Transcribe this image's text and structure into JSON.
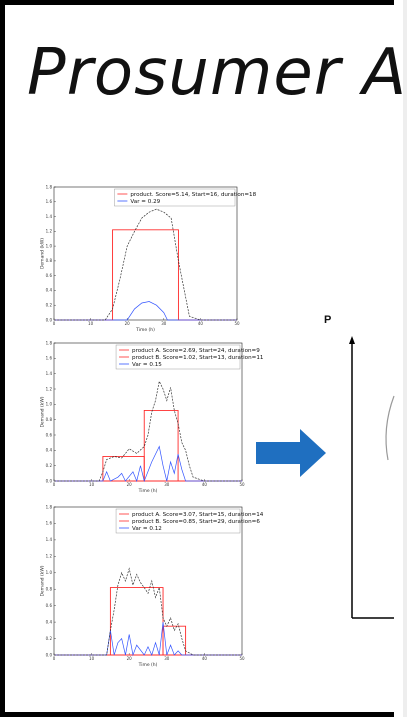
{
  "slide": {
    "title": "Prosumer A"
  },
  "p_label": "P",
  "chart_data": [
    {
      "type": "line",
      "ylabel": "Demand (kW)",
      "xlabel": "Time (h)",
      "ylim": [
        0,
        1.8
      ],
      "xlim": [
        0,
        50
      ],
      "yticks": [
        "0.0",
        "0.2",
        "0.4",
        "0.6",
        "0.8",
        "1.0",
        "1.2",
        "1.4",
        "1.6",
        "1.8"
      ],
      "xticks": [
        "0",
        "10",
        "20",
        "30",
        "40",
        "50"
      ],
      "legend": [
        "product. Score=5.14, Start=16, duration=18",
        "Var = 0.29"
      ],
      "demand": [
        [
          0,
          0
        ],
        [
          14,
          0
        ],
        [
          16,
          0.15
        ],
        [
          18,
          0.55
        ],
        [
          20,
          1.0
        ],
        [
          22,
          1.2
        ],
        [
          24,
          1.38
        ],
        [
          26,
          1.46
        ],
        [
          28,
          1.5
        ],
        [
          30,
          1.46
        ],
        [
          32,
          1.38
        ],
        [
          34,
          0.8
        ],
        [
          36,
          0.3
        ],
        [
          37,
          0.05
        ],
        [
          40,
          0
        ],
        [
          50,
          0
        ]
      ],
      "products": [
        {
          "x": [
            0,
            16,
            16,
            34,
            34,
            50
          ],
          "y": [
            0,
            0,
            1.22,
            1.22,
            0,
            0
          ]
        }
      ],
      "variance": [
        [
          0,
          0
        ],
        [
          20,
          0
        ],
        [
          22,
          0.15
        ],
        [
          24,
          0.23
        ],
        [
          26,
          0.25
        ],
        [
          28,
          0.2
        ],
        [
          30,
          0.1
        ],
        [
          31,
          0
        ],
        [
          50,
          0
        ]
      ]
    },
    {
      "type": "line",
      "ylabel": "Demand (kW)",
      "xlabel": "Time (h)",
      "ylim": [
        0,
        1.8
      ],
      "xlim": [
        0,
        50
      ],
      "yticks": [
        "0.0",
        "0.2",
        "0.4",
        "0.6",
        "0.8",
        "1.0",
        "1.2",
        "1.4",
        "1.6",
        "1.8"
      ],
      "xticks": [
        "0",
        "10",
        "20",
        "30",
        "40",
        "50"
      ],
      "legend": [
        "product A. Score=2.69, Start=24, duration=9",
        "product B. Score=1.02, Start=13, duration=11",
        "Var = 0.15"
      ],
      "demand": [
        [
          0,
          0
        ],
        [
          12,
          0
        ],
        [
          13,
          0.12
        ],
        [
          14,
          0.28
        ],
        [
          16,
          0.32
        ],
        [
          18,
          0.3
        ],
        [
          20,
          0.42
        ],
        [
          22,
          0.36
        ],
        [
          24,
          0.45
        ],
        [
          25,
          0.6
        ],
        [
          26,
          0.9
        ],
        [
          27,
          1.05
        ],
        [
          28,
          1.3
        ],
        [
          29,
          1.2
        ],
        [
          30,
          1.05
        ],
        [
          31,
          1.22
        ],
        [
          32,
          0.92
        ],
        [
          33,
          0.75
        ],
        [
          34,
          0.5
        ],
        [
          35,
          0.4
        ],
        [
          36,
          0.2
        ],
        [
          37,
          0.05
        ],
        [
          40,
          0
        ],
        [
          50,
          0
        ]
      ],
      "products": [
        {
          "x": [
            0,
            24,
            24,
            33,
            33,
            50
          ],
          "y": [
            0,
            0,
            0.92,
            0.92,
            0,
            0
          ]
        },
        {
          "x": [
            0,
            13,
            13,
            24,
            24,
            50
          ],
          "y": [
            0,
            0,
            0.32,
            0.32,
            0,
            0
          ]
        }
      ],
      "variance": [
        [
          0,
          0
        ],
        [
          13,
          0
        ],
        [
          14,
          0.12
        ],
        [
          15,
          0
        ],
        [
          17,
          0.05
        ],
        [
          18,
          0.1
        ],
        [
          19,
          0
        ],
        [
          21,
          0.12
        ],
        [
          22,
          0
        ],
        [
          23,
          0.2
        ],
        [
          24,
          0
        ],
        [
          26,
          0.25
        ],
        [
          28,
          0.45
        ],
        [
          29,
          0.2
        ],
        [
          30,
          0
        ],
        [
          31,
          0.25
        ],
        [
          32,
          0.1
        ],
        [
          33,
          0.35
        ],
        [
          34,
          0.15
        ],
        [
          35,
          0
        ],
        [
          50,
          0
        ]
      ]
    },
    {
      "type": "line",
      "ylabel": "Demand (kW)",
      "xlabel": "Time (h)",
      "ylim": [
        0,
        1.8
      ],
      "xlim": [
        0,
        50
      ],
      "yticks": [
        "0.0",
        "0.2",
        "0.4",
        "0.6",
        "0.8",
        "1.0",
        "1.2",
        "1.4",
        "1.6",
        "1.8"
      ],
      "xticks": [
        "0",
        "10",
        "20",
        "30",
        "40",
        "50"
      ],
      "legend": [
        "product A. Score=3.07, Start=15, duration=14",
        "product B. Score=0.85, Start=29, duration=6",
        "Var = 0.12"
      ],
      "demand": [
        [
          0,
          0
        ],
        [
          14,
          0
        ],
        [
          15,
          0.3
        ],
        [
          16,
          0.55
        ],
        [
          17,
          0.85
        ],
        [
          18,
          1.0
        ],
        [
          19,
          0.9
        ],
        [
          20,
          1.05
        ],
        [
          21,
          0.85
        ],
        [
          22,
          0.98
        ],
        [
          23,
          0.88
        ],
        [
          24,
          0.82
        ],
        [
          25,
          0.75
        ],
        [
          26,
          0.9
        ],
        [
          27,
          0.7
        ],
        [
          28,
          0.82
        ],
        [
          29,
          0.45
        ],
        [
          30,
          0.35
        ],
        [
          31,
          0.45
        ],
        [
          32,
          0.3
        ],
        [
          33,
          0.38
        ],
        [
          34,
          0.2
        ],
        [
          35,
          0.05
        ],
        [
          37,
          0
        ],
        [
          50,
          0
        ]
      ],
      "products": [
        {
          "x": [
            0,
            15,
            15,
            29,
            29,
            50
          ],
          "y": [
            0,
            0,
            0.82,
            0.82,
            0,
            0
          ]
        },
        {
          "x": [
            0,
            29,
            29,
            35,
            35,
            50
          ],
          "y": [
            0,
            0,
            0.35,
            0.35,
            0,
            0
          ]
        }
      ],
      "variance": [
        [
          0,
          0
        ],
        [
          14,
          0
        ],
        [
          15,
          0.3
        ],
        [
          16,
          0
        ],
        [
          17,
          0.15
        ],
        [
          18,
          0.2
        ],
        [
          19,
          0
        ],
        [
          20,
          0.25
        ],
        [
          21,
          0
        ],
        [
          22,
          0.12
        ],
        [
          24,
          0
        ],
        [
          25,
          0.1
        ],
        [
          26,
          0
        ],
        [
          27,
          0.15
        ],
        [
          28,
          0
        ],
        [
          29,
          0.4
        ],
        [
          30,
          0
        ],
        [
          31,
          0.12
        ],
        [
          32,
          0
        ],
        [
          33,
          0.05
        ],
        [
          34,
          0
        ],
        [
          50,
          0
        ]
      ]
    }
  ]
}
